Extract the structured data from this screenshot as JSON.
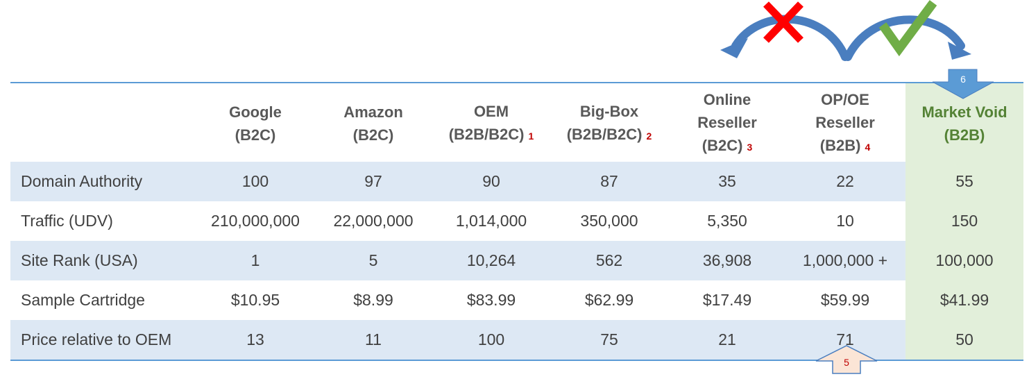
{
  "columns": [
    {
      "name": "Google",
      "sub": "(B2C)",
      "note": ""
    },
    {
      "name": "Amazon",
      "sub": "(B2C)",
      "note": ""
    },
    {
      "name": "OEM",
      "sub": "(B2B/B2C)",
      "note": "1"
    },
    {
      "name": "Big-Box",
      "sub": "(B2B/B2C)",
      "note": "2"
    },
    {
      "name": "Online Reseller",
      "sub": "(B2C)",
      "note": "3"
    },
    {
      "name": "OP/OE Reseller",
      "sub": "(B2B)",
      "note": "4"
    },
    {
      "name": "Market Void",
      "sub": "(B2B)",
      "note": ""
    }
  ],
  "rows": [
    {
      "label": "Domain Authority",
      "values": [
        "100",
        "97",
        "90",
        "87",
        "35",
        "22",
        "55"
      ]
    },
    {
      "label": "Traffic (UDV)",
      "values": [
        "210,000,000",
        "22,000,000",
        "1,014,000",
        "350,000",
        "5,350",
        "10",
        "150"
      ]
    },
    {
      "label": "Site Rank (USA)",
      "values": [
        "1",
        "5",
        "10,264",
        "562",
        "36,908",
        "1,000,000 +",
        "100,000"
      ]
    },
    {
      "label": "Sample Cartridge",
      "values": [
        "$10.95",
        "$8.99",
        "$83.99",
        "$62.99",
        "$17.49",
        "$59.99",
        "$41.99"
      ]
    },
    {
      "label": "Price relative to OEM",
      "values": [
        "13",
        "11",
        "100",
        "75",
        "21",
        "71",
        "50"
      ]
    }
  ],
  "callouts": {
    "top": "6",
    "bottom": "5"
  },
  "marks": {
    "reject": "x-mark-icon",
    "accept": "check-mark-icon"
  },
  "colors": {
    "rule": "#5b9bd5",
    "band": "#dde8f4",
    "void": "#e2efda",
    "void_text": "#548235",
    "footnote": "#c00000",
    "reject": "#ff0000",
    "accept": "#70ad47",
    "arrow": "#4a7ebf"
  }
}
